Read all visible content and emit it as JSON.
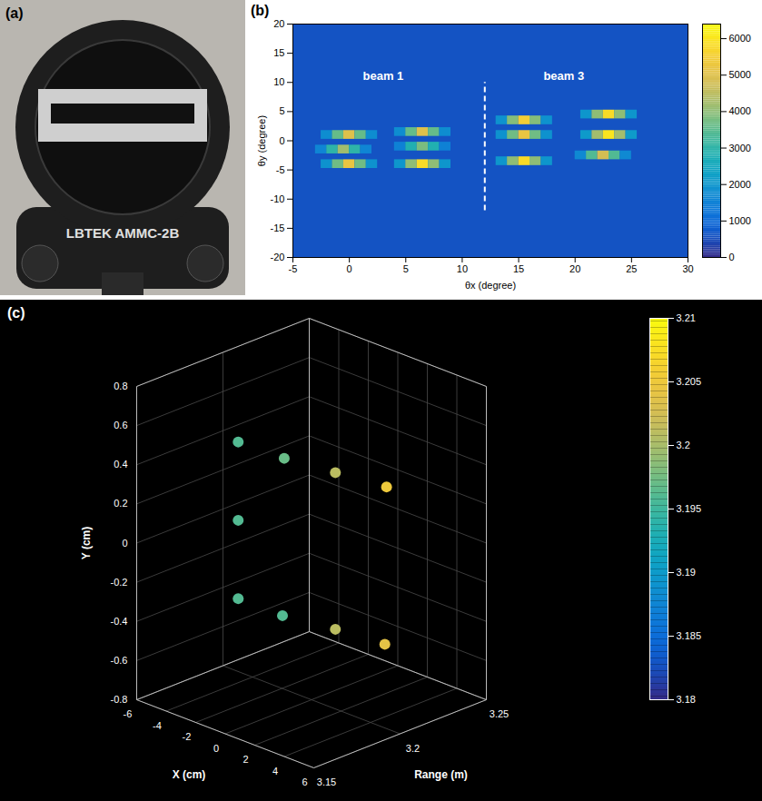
{
  "chart_data": [
    {
      "type": "image",
      "label": "(a)",
      "text": "LBTEK AMMC-2B"
    },
    {
      "type": "heatmap",
      "label": "(b)",
      "xlabel": "θx (degree)",
      "ylabel": "θy (degree)",
      "xlim": [
        -5,
        30
      ],
      "ylim": [
        -20,
        20
      ],
      "xticks": [
        -5,
        0,
        5,
        10,
        15,
        20,
        25,
        30
      ],
      "yticks": [
        -20,
        -15,
        -10,
        -5,
        0,
        5,
        10,
        15,
        20
      ],
      "cell_size": [
        1,
        1.5
      ],
      "background": 600,
      "cells": [
        [
          -2,
          1,
          1800
        ],
        [
          -1,
          1,
          3600
        ],
        [
          0,
          1,
          5000
        ],
        [
          1,
          1,
          3600
        ],
        [
          2,
          1,
          1800
        ],
        [
          -2.5,
          -1.5,
          1600
        ],
        [
          -1.5,
          -1.5,
          3000
        ],
        [
          -0.5,
          -1.5,
          4200
        ],
        [
          0.5,
          -1.5,
          3000
        ],
        [
          1.5,
          -1.5,
          1600
        ],
        [
          -2,
          -4,
          1900
        ],
        [
          -1,
          -4,
          3700
        ],
        [
          0,
          -4,
          5200
        ],
        [
          1,
          -4,
          3700
        ],
        [
          2,
          -4,
          1900
        ],
        [
          4.5,
          1.5,
          1800
        ],
        [
          5.5,
          1.5,
          3600
        ],
        [
          6.5,
          1.5,
          5000
        ],
        [
          7.5,
          1.5,
          3600
        ],
        [
          8.5,
          1.5,
          1800
        ],
        [
          4.5,
          -1,
          1500
        ],
        [
          5.5,
          -1,
          2800
        ],
        [
          6.5,
          -1,
          3800
        ],
        [
          7.5,
          -1,
          2800
        ],
        [
          8.5,
          -1,
          1500
        ],
        [
          4.5,
          -4,
          2000
        ],
        [
          5.5,
          -4,
          4000
        ],
        [
          6.5,
          -4,
          5800
        ],
        [
          7.5,
          -4,
          4000
        ],
        [
          8.5,
          -4,
          2000
        ],
        [
          13.5,
          3.5,
          1900
        ],
        [
          14.5,
          3.5,
          3900
        ],
        [
          15.5,
          3.5,
          5500
        ],
        [
          16.5,
          3.5,
          3900
        ],
        [
          17.5,
          3.5,
          1900
        ],
        [
          13.5,
          1,
          1900
        ],
        [
          14.5,
          1,
          3700
        ],
        [
          15.5,
          1,
          5200
        ],
        [
          16.5,
          1,
          3700
        ],
        [
          17.5,
          1,
          1900
        ],
        [
          13.5,
          -3.5,
          2000
        ],
        [
          14.5,
          -3.5,
          4000
        ],
        [
          15.5,
          -3.5,
          5800
        ],
        [
          16.5,
          -3.5,
          4000
        ],
        [
          17.5,
          -3.5,
          2000
        ],
        [
          21,
          4.5,
          2000
        ],
        [
          22,
          4.5,
          4000
        ],
        [
          23,
          4.5,
          5800
        ],
        [
          24,
          4.5,
          4000
        ],
        [
          25,
          4.5,
          2000
        ],
        [
          21,
          1,
          2100
        ],
        [
          22,
          1,
          4200
        ],
        [
          23,
          1,
          6000
        ],
        [
          24,
          1,
          4200
        ],
        [
          25,
          1,
          2100
        ],
        [
          20.5,
          -2.5,
          1700
        ],
        [
          21.5,
          -2.5,
          3400
        ],
        [
          22.5,
          -2.5,
          4800
        ],
        [
          23.5,
          -2.5,
          3400
        ],
        [
          24.5,
          -2.5,
          1700
        ]
      ],
      "colorbar": {
        "range": [
          0,
          6400
        ],
        "ticks": [
          0,
          1000,
          2000,
          3000,
          4000,
          5000,
          6000
        ]
      },
      "annotations": [
        {
          "text": "beam 1",
          "x": 3,
          "y": 11
        },
        {
          "text": "beam 3",
          "x": 19,
          "y": 11
        }
      ],
      "divider": {
        "x": 12,
        "y": [
          -12,
          10
        ]
      }
    },
    {
      "type": "scatter3d",
      "label": "(c)",
      "xlabel": "X (cm)",
      "ylabel": "Y (cm)",
      "zlabel": "Range (m)",
      "xlim": [
        -6,
        6
      ],
      "ylim": [
        -0.8,
        0.8
      ],
      "zlim": [
        3.15,
        3.25
      ],
      "xticks": [
        -6,
        -4,
        -2,
        0,
        2,
        4,
        6
      ],
      "yticks": [
        -0.8,
        -0.6,
        -0.4,
        -0.2,
        0,
        0.2,
        0.4,
        0.6,
        0.8
      ],
      "zticks": [
        3.15,
        3.2,
        3.25
      ],
      "grid": true,
      "points": {
        "x": [
          -4.5,
          -1.5,
          1.5,
          4.5,
          -4.5,
          -4.5,
          -1.5,
          1.5,
          4.5
        ],
        "y": [
          0.4,
          0.4,
          0.4,
          0.4,
          0,
          -0.4,
          -0.4,
          -0.4,
          -0.4
        ],
        "z": [
          3.196,
          3.197,
          3.201,
          3.205,
          3.196,
          3.196,
          3.196,
          3.201,
          3.204
        ]
      },
      "colorbar": {
        "range": [
          3.18,
          3.21
        ],
        "ticks": [
          3.18,
          3.185,
          3.19,
          3.195,
          3.2,
          3.205,
          3.21
        ]
      }
    }
  ]
}
